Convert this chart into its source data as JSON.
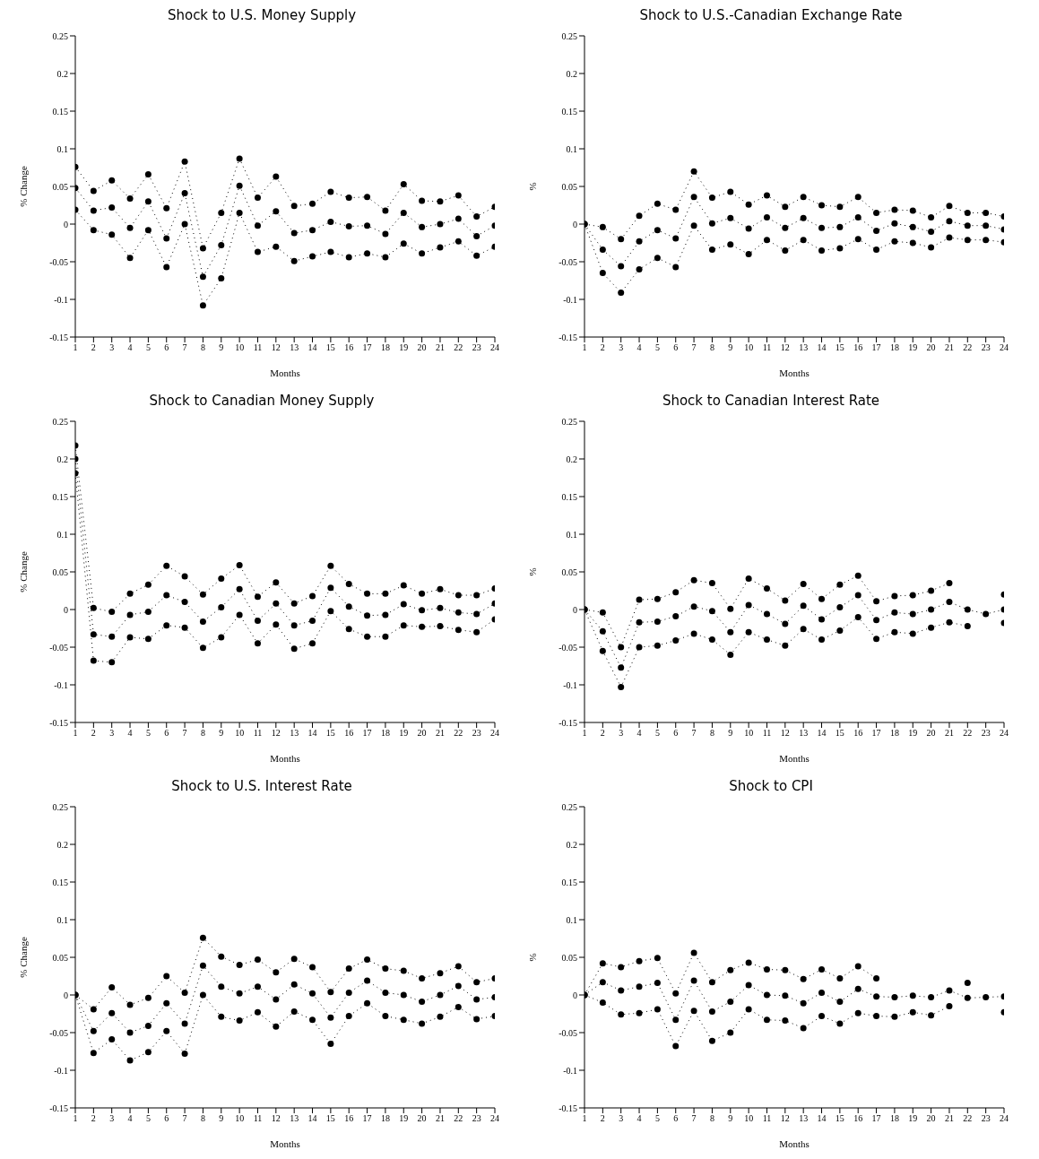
{
  "chart_data": [
    {
      "type": "line",
      "title": "Shock to U.S. Money Supply",
      "xlabel": "Months",
      "ylabel": "% Change",
      "x": [
        1,
        2,
        3,
        4,
        5,
        6,
        7,
        8,
        9,
        10,
        11,
        12,
        13,
        14,
        15,
        16,
        17,
        18,
        19,
        20,
        21,
        22,
        23,
        24
      ],
      "xlim": [
        1,
        24
      ],
      "xticks": [
        1,
        2,
        3,
        4,
        5,
        6,
        7,
        8,
        9,
        10,
        11,
        12,
        13,
        14,
        15,
        16,
        17,
        18,
        19,
        20,
        21,
        22,
        23,
        24
      ],
      "ylim": [
        -0.15,
        0.25
      ],
      "yticks": [
        -0.15,
        -0.1,
        -0.05,
        0,
        0.05,
        0.1,
        0.15,
        0.2,
        0.25
      ],
      "marker": "circle",
      "line_style": "dotted",
      "series": [
        {
          "color": "#000000",
          "values": [
            0.076,
            0.044,
            0.058,
            0.034,
            0.066,
            0.021,
            0.083,
            -0.032,
            0.015,
            0.087,
            0.035,
            0.063,
            0.024,
            0.027,
            0.043,
            0.035,
            0.036,
            0.018,
            0.053,
            0.031,
            0.03,
            0.038,
            0.01,
            0.023
          ]
        },
        {
          "color": "#000000",
          "values": [
            0.048,
            0.018,
            0.022,
            -0.005,
            0.03,
            -0.019,
            0.041,
            -0.07,
            -0.028,
            0.051,
            -0.002,
            0.017,
            -0.012,
            -0.008,
            0.003,
            -0.003,
            -0.002,
            -0.013,
            0.015,
            -0.004,
            0,
            0.007,
            -0.016,
            -0.002
          ]
        },
        {
          "color": "#000000",
          "values": [
            0.019,
            -0.008,
            -0.014,
            -0.045,
            -0.008,
            -0.057,
            0,
            -0.108,
            -0.072,
            0.015,
            -0.037,
            -0.03,
            -0.049,
            -0.043,
            -0.037,
            -0.044,
            -0.039,
            -0.044,
            -0.026,
            -0.039,
            -0.031,
            -0.023,
            -0.042,
            -0.03
          ]
        }
      ]
    },
    {
      "type": "line",
      "title": "Shock to U.S.-Canadian Exchange Rate",
      "xlabel": "Months",
      "ylabel": "%",
      "x": [
        1,
        2,
        3,
        4,
        5,
        6,
        7,
        8,
        9,
        10,
        11,
        12,
        13,
        14,
        15,
        16,
        17,
        18,
        19,
        20,
        21,
        22,
        23,
        24
      ],
      "xlim": [
        1,
        24
      ],
      "xticks": [
        1,
        2,
        3,
        4,
        5,
        6,
        7,
        8,
        9,
        10,
        11,
        12,
        13,
        14,
        15,
        16,
        17,
        18,
        19,
        20,
        21,
        22,
        23,
        24
      ],
      "ylim": [
        -0.15,
        0.25
      ],
      "yticks": [
        -0.15,
        -0.1,
        -0.05,
        0,
        0.05,
        0.1,
        0.15,
        0.2,
        0.25
      ],
      "marker": "circle",
      "line_style": "dotted",
      "series": [
        {
          "color": "#000000",
          "values": [
            0,
            -0.004,
            -0.02,
            0.011,
            0.027,
            0.019,
            0.07,
            0.035,
            0.043,
            0.026,
            0.038,
            0.023,
            0.036,
            0.025,
            0.023,
            0.036,
            0.015,
            0.019,
            0.018,
            0.009,
            0.024,
            0.015,
            0.015,
            0.01
          ]
        },
        {
          "color": "#000000",
          "values": [
            0,
            -0.034,
            -0.056,
            -0.023,
            -0.008,
            -0.019,
            0.036,
            0.001,
            0.008,
            -0.006,
            0.009,
            -0.005,
            0.008,
            -0.005,
            -0.004,
            0.009,
            -0.009,
            0.001,
            -0.004,
            -0.01,
            0.004,
            -0.002,
            -0.002,
            -0.007
          ]
        },
        {
          "color": "#000000",
          "values": [
            0,
            -0.065,
            -0.091,
            -0.06,
            -0.045,
            -0.057,
            -0.002,
            -0.034,
            -0.027,
            -0.04,
            -0.021,
            -0.035,
            -0.021,
            -0.035,
            -0.032,
            -0.02,
            -0.034,
            -0.023,
            -0.025,
            -0.031,
            -0.018,
            -0.021,
            -0.021,
            -0.024
          ]
        }
      ]
    },
    {
      "type": "line",
      "title": "Shock to Canadian Money Supply",
      "xlabel": "Months",
      "ylabel": "% Change",
      "x": [
        1,
        2,
        3,
        4,
        5,
        6,
        7,
        8,
        9,
        10,
        11,
        12,
        13,
        14,
        15,
        16,
        17,
        18,
        19,
        20,
        21,
        22,
        23,
        24
      ],
      "xlim": [
        1,
        24
      ],
      "xticks": [
        1,
        2,
        3,
        4,
        5,
        6,
        7,
        8,
        9,
        10,
        11,
        12,
        13,
        14,
        15,
        16,
        17,
        18,
        19,
        20,
        21,
        22,
        23,
        24
      ],
      "ylim": [
        -0.15,
        0.25
      ],
      "yticks": [
        -0.15,
        -0.1,
        -0.05,
        0,
        0.05,
        0.1,
        0.15,
        0.2,
        0.25
      ],
      "marker": "circle",
      "line_style": "dotted",
      "series": [
        {
          "color": "#000000",
          "values": [
            0.218,
            0.002,
            -0.003,
            0.021,
            0.033,
            0.058,
            0.044,
            0.02,
            0.041,
            0.059,
            0.017,
            0.036,
            0.008,
            0.018,
            0.058,
            0.034,
            0.021,
            0.021,
            0.032,
            0.021,
            0.027,
            0.019,
            0.019,
            0.028
          ]
        },
        {
          "color": "#000000",
          "values": [
            0.2,
            -0.033,
            -0.036,
            -0.007,
            -0.003,
            0.019,
            0.01,
            -0.016,
            0.003,
            0.027,
            -0.015,
            0.008,
            -0.021,
            -0.015,
            0.029,
            0.004,
            -0.008,
            -0.007,
            0.007,
            -0.001,
            0.002,
            -0.004,
            -0.006,
            0.008
          ]
        },
        {
          "color": "#000000",
          "values": [
            0.181,
            -0.068,
            -0.07,
            -0.037,
            -0.039,
            -0.021,
            -0.024,
            -0.051,
            -0.037,
            -0.007,
            -0.045,
            -0.02,
            -0.052,
            -0.045,
            -0.002,
            -0.026,
            -0.036,
            -0.036,
            -0.021,
            -0.023,
            -0.022,
            -0.027,
            -0.03,
            -0.013
          ]
        }
      ]
    },
    {
      "type": "line",
      "title": "Shock to Canadian Interest Rate",
      "xlabel": "Months",
      "ylabel": "%",
      "x": [
        1,
        2,
        3,
        4,
        5,
        6,
        7,
        8,
        9,
        10,
        11,
        12,
        13,
        14,
        15,
        16,
        17,
        18,
        19,
        20,
        21,
        22,
        23,
        24
      ],
      "xlim": [
        1,
        24
      ],
      "xticks": [
        1,
        2,
        3,
        4,
        5,
        6,
        7,
        8,
        9,
        10,
        11,
        12,
        13,
        14,
        15,
        16,
        17,
        18,
        19,
        20,
        21,
        22,
        23,
        24
      ],
      "ylim": [
        -0.15,
        0.25
      ],
      "yticks": [
        -0.15,
        -0.1,
        -0.05,
        0,
        0.05,
        0.1,
        0.15,
        0.2,
        0.25
      ],
      "marker": "circle",
      "line_style": "dotted",
      "series": [
        {
          "color": "#000000",
          "values": [
            0,
            -0.004,
            -0.05,
            0.013,
            0.014,
            0.023,
            0.039,
            0.035,
            0.001,
            0.041,
            0.028,
            0.012,
            0.034,
            0.014,
            0.033,
            0.045,
            0.011,
            0.018,
            0.019,
            0.025,
            0.035,
            null,
            null,
            0.02
          ]
        },
        {
          "color": "#000000",
          "values": [
            0,
            -0.029,
            -0.077,
            -0.017,
            -0.016,
            -0.009,
            0.004,
            -0.002,
            -0.03,
            0.006,
            -0.006,
            -0.019,
            0.005,
            -0.013,
            0.003,
            0.019,
            -0.014,
            -0.004,
            -0.006,
            0,
            0.01,
            0,
            -0.006,
            0
          ]
        },
        {
          "color": "#000000",
          "values": [
            0,
            -0.055,
            -0.103,
            -0.05,
            -0.048,
            -0.041,
            -0.032,
            -0.04,
            -0.06,
            -0.03,
            -0.04,
            -0.048,
            -0.026,
            -0.04,
            -0.028,
            -0.01,
            -0.039,
            -0.03,
            -0.032,
            -0.024,
            -0.017,
            -0.022,
            null,
            -0.018
          ]
        }
      ]
    },
    {
      "type": "line",
      "title": "Shock to U.S. Interest Rate",
      "xlabel": "Months",
      "ylabel": "% Change",
      "x": [
        1,
        2,
        3,
        4,
        5,
        6,
        7,
        8,
        9,
        10,
        11,
        12,
        13,
        14,
        15,
        16,
        17,
        18,
        19,
        20,
        21,
        22,
        23,
        24
      ],
      "xlim": [
        1,
        24
      ],
      "xticks": [
        1,
        2,
        3,
        4,
        5,
        6,
        7,
        8,
        9,
        10,
        11,
        12,
        13,
        14,
        15,
        16,
        17,
        18,
        19,
        20,
        21,
        22,
        23,
        24
      ],
      "ylim": [
        -0.15,
        0.25
      ],
      "yticks": [
        -0.15,
        -0.1,
        -0.05,
        0,
        0.05,
        0.1,
        0.15,
        0.2,
        0.25
      ],
      "marker": "circle",
      "line_style": "dotted",
      "series": [
        {
          "color": "#000000",
          "values": [
            0,
            -0.019,
            0.01,
            -0.013,
            -0.004,
            0.025,
            0.003,
            0.076,
            0.051,
            0.04,
            0.047,
            0.03,
            0.048,
            0.037,
            0.004,
            0.035,
            0.047,
            0.035,
            0.032,
            0.022,
            0.029,
            0.038,
            0.017,
            0.022
          ]
        },
        {
          "color": "#000000",
          "values": [
            0,
            -0.048,
            -0.024,
            -0.05,
            -0.041,
            -0.011,
            -0.038,
            0.039,
            0.011,
            0.002,
            0.011,
            -0.006,
            0.014,
            0.002,
            -0.03,
            0.003,
            0.019,
            0.003,
            0,
            -0.009,
            0,
            0.012,
            -0.006,
            -0.003
          ]
        },
        {
          "color": "#000000",
          "values": [
            0,
            -0.077,
            -0.059,
            -0.087,
            -0.076,
            -0.048,
            -0.078,
            0,
            -0.029,
            -0.034,
            -0.023,
            -0.042,
            -0.022,
            -0.033,
            -0.065,
            -0.028,
            -0.011,
            -0.028,
            -0.033,
            -0.038,
            -0.029,
            -0.016,
            -0.032,
            -0.028
          ]
        }
      ]
    },
    {
      "type": "line",
      "title": "Shock to CPI",
      "xlabel": "Months",
      "ylabel": "%",
      "x": [
        1,
        2,
        3,
        4,
        5,
        6,
        7,
        8,
        9,
        10,
        11,
        12,
        13,
        14,
        15,
        16,
        17,
        18,
        19,
        20,
        21,
        22,
        23,
        24
      ],
      "xlim": [
        1,
        24
      ],
      "xticks": [
        1,
        2,
        3,
        4,
        5,
        6,
        7,
        8,
        9,
        10,
        11,
        12,
        13,
        14,
        15,
        16,
        17,
        18,
        19,
        20,
        21,
        22,
        23,
        24
      ],
      "ylim": [
        -0.15,
        0.25
      ],
      "yticks": [
        -0.15,
        -0.1,
        -0.05,
        0,
        0.05,
        0.1,
        0.15,
        0.2,
        0.25
      ],
      "marker": "circle",
      "line_style": "dotted",
      "series": [
        {
          "color": "#000000",
          "values": [
            0,
            0.042,
            0.037,
            0.045,
            0.049,
            0.002,
            0.056,
            0.017,
            0.033,
            0.043,
            0.034,
            0.033,
            0.021,
            0.034,
            0.022,
            0.038,
            0.022,
            null,
            null,
            null,
            null,
            0.016,
            null,
            null
          ]
        },
        {
          "color": "#000000",
          "values": [
            0,
            0.017,
            0.006,
            0.011,
            0.016,
            -0.033,
            0.019,
            -0.022,
            -0.009,
            0.013,
            0,
            -0.001,
            -0.011,
            0.003,
            -0.009,
            0.008,
            -0.002,
            -0.003,
            -0.001,
            -0.003,
            0.006,
            -0.004,
            -0.003,
            -0.002
          ]
        },
        {
          "color": "#000000",
          "values": [
            0,
            -0.01,
            -0.026,
            -0.024,
            -0.019,
            -0.068,
            -0.021,
            -0.061,
            -0.05,
            -0.019,
            -0.033,
            -0.034,
            -0.044,
            -0.028,
            -0.038,
            -0.024,
            -0.028,
            -0.029,
            -0.023,
            -0.027,
            -0.015,
            null,
            null,
            -0.023
          ]
        }
      ]
    }
  ]
}
